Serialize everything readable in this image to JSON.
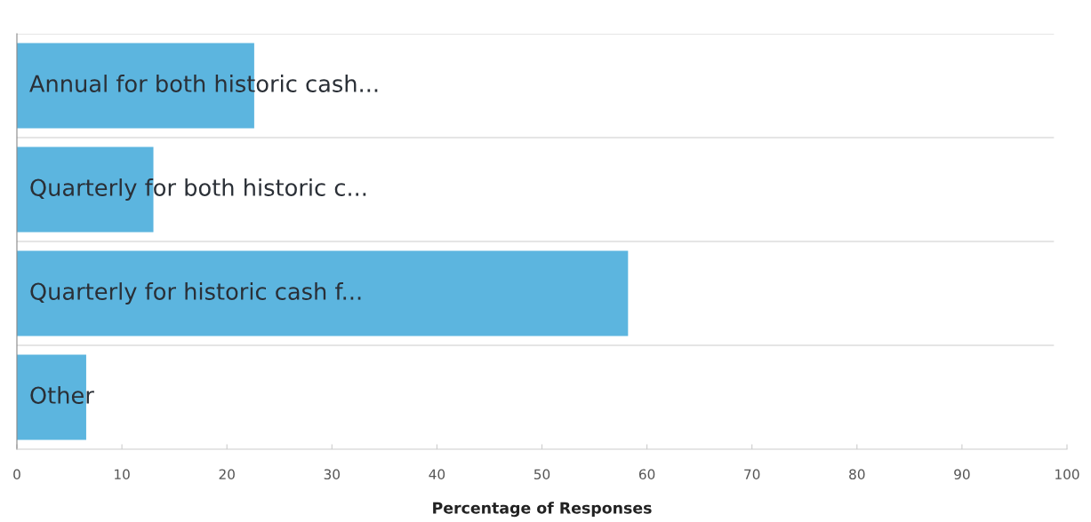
{
  "chart_data": {
    "type": "bar",
    "orientation": "horizontal",
    "xlabel": "Percentage of Responses",
    "categories": [
      "Annual for both historic cash...",
      "Quarterly for both historic c...",
      "Quarterly for historic cash f...",
      "Other"
    ],
    "values": [
      22.6,
      13.0,
      58.2,
      6.6
    ],
    "color": "#5cb5df",
    "xlim": [
      0,
      100
    ],
    "xticks": [
      0,
      10,
      20,
      30,
      40,
      50,
      60,
      70,
      80,
      90,
      100
    ],
    "grid": "y",
    "legend": false
  }
}
